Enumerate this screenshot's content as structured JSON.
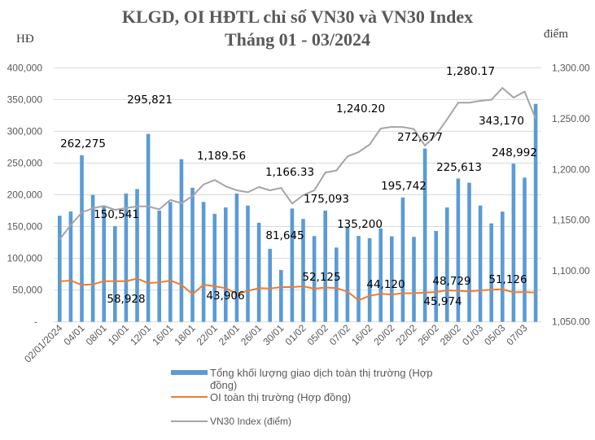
{
  "chart_data": {
    "type": "bar+line",
    "title": [
      "KLGD, OI HĐTL chỉ số VN30 và VN30 Index",
      "Tháng 01 - 03/2024"
    ],
    "ylabel_left": "HĐ",
    "ylabel_right": "điểm",
    "ylim_left": [
      0,
      400000
    ],
    "ylim_right": [
      1050,
      1300
    ],
    "yticks_left": [
      "-",
      "50,000",
      "100,000",
      "150,000",
      "200,000",
      "250,000",
      "300,000",
      "350,000",
      "400,000"
    ],
    "yticks_right": [
      "1,050.00",
      "1,100.00",
      "1,150.00",
      "1,200.00",
      "1,250.00",
      "1,300.00"
    ],
    "grid": true,
    "legend_position": "bottom",
    "x_tick_labels": [
      "02/01/2024",
      "04/01",
      "08/01",
      "10/01",
      "12/01",
      "16/01",
      "18/01",
      "22/01",
      "24/01",
      "26/01",
      "30/01",
      "01/02",
      "05/02",
      "07/02",
      "16/02",
      "20/02",
      "22/02",
      "26/02",
      "28/02",
      "01/03",
      "05/03",
      "07/03"
    ],
    "series": [
      {
        "name": "Tổng khối lượng giao dịch toàn thị trường (Hợp đồng)",
        "type": "bar",
        "axis": "left",
        "color": "#5B9BD5",
        "values": [
          167000,
          173700,
          262275,
          199800,
          183000,
          150541,
          202000,
          209000,
          295821,
          175000,
          188700,
          256000,
          211000,
          188700,
          170000,
          180000,
          202000,
          183000,
          156000,
          115000,
          81645,
          178400,
          162000,
          135000,
          175093,
          117000,
          149000,
          135200,
          131600,
          147000,
          134600,
          195742,
          133700,
          272677,
          143000,
          180000,
          225613,
          219000,
          183000,
          155000,
          173500,
          248992,
          227000,
          343170
        ]
      },
      {
        "name": "OI toàn thị trường (Hợp đồng)",
        "type": "line",
        "axis": "left",
        "color": "#ED7D31",
        "values": [
          63600,
          65000,
          58000,
          58928,
          64000,
          64000,
          64000,
          68000,
          61000,
          62000,
          65000,
          58500,
          43500,
          58500,
          56000,
          53000,
          43906,
          48700,
          53000,
          52500,
          54600,
          54600,
          56000,
          52125,
          54000,
          53000,
          47500,
          34000,
          41000,
          44120,
          43000,
          45000,
          45000,
          45974,
          47000,
          49500,
          48729,
          48000,
          49600,
          50500,
          51126,
          46500,
          47000,
          46000
        ]
      },
      {
        "name": "VN30 Index (điểm)",
        "type": "line",
        "axis": "right",
        "color": "#A5A5A5",
        "values": [
          1131.1,
          1145.2,
          1157.5,
          1161.8,
          1164,
          1160.2,
          1162,
          1163.6,
          1163.6,
          1160.7,
          1170,
          1166.6,
          1173.8,
          1185.2,
          1189.56,
          1183.4,
          1179.4,
          1177.5,
          1182.6,
          1179.4,
          1181.8,
          1166.33,
          1174.6,
          1179.4,
          1196.8,
          1198.9,
          1212.8,
          1217,
          1224.5,
          1240.2,
          1241.8,
          1241.6,
          1239.7,
          1223.4,
          1234,
          1249.3,
          1265.6,
          1265.6,
          1267.4,
          1268.5,
          1280.17,
          1270.6,
          1276.5,
          1249.8
        ]
      }
    ],
    "data_labels": [
      "262,275",
      "295,821",
      "150,541",
      "58,928",
      "1,189.56",
      "43,906",
      "1,166.33",
      "81,645",
      "52,125",
      "175,093",
      "135,200",
      "1,240.20",
      "44,120",
      "195,742",
      "272,677",
      "45,974",
      "225,613",
      "48,729",
      "1,280.17",
      "51,126",
      "248,992",
      "343,170"
    ]
  }
}
